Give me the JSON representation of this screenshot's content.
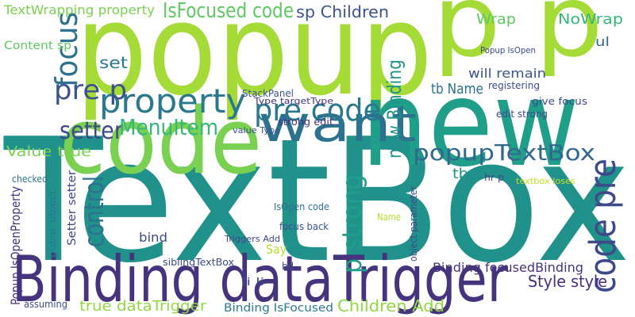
{
  "words": [
    "TextBox",
    "popup",
    "Binding dataTrigger",
    "new",
    "code",
    "p p",
    "want",
    "property",
    "pre code",
    "pre p",
    "IsFocused code",
    "sp Children",
    "focus",
    "setter",
    "MenuItem",
    "Value true",
    "popupTextBox",
    "code pre",
    "p strong",
    "control",
    "Style style",
    "true dataTrigger",
    "Children Add",
    "Binding IsFocused",
    "Binding focusedBinding",
    "new Binding",
    "Wrap",
    "NoWrap",
    "tb Name",
    "will remain",
    "give focus",
    "tb",
    "Popup IsOpenProperty",
    "TextWrapping property",
    "Content sp",
    "set",
    "bind",
    "Say",
    "ul",
    "StackPanel",
    "Type targetType",
    "strong edit",
    "edit strong",
    "registering",
    "Popup IsOpen",
    "Setter setter",
    "public object",
    "checked",
    "assuming",
    "li li",
    "value Type",
    "focus back",
    "IsOpen code",
    "object parameter",
    "siblingTextBox",
    "Name",
    "textbox loses",
    "hr p",
    "bd",
    "Triggers Add"
  ]
}
